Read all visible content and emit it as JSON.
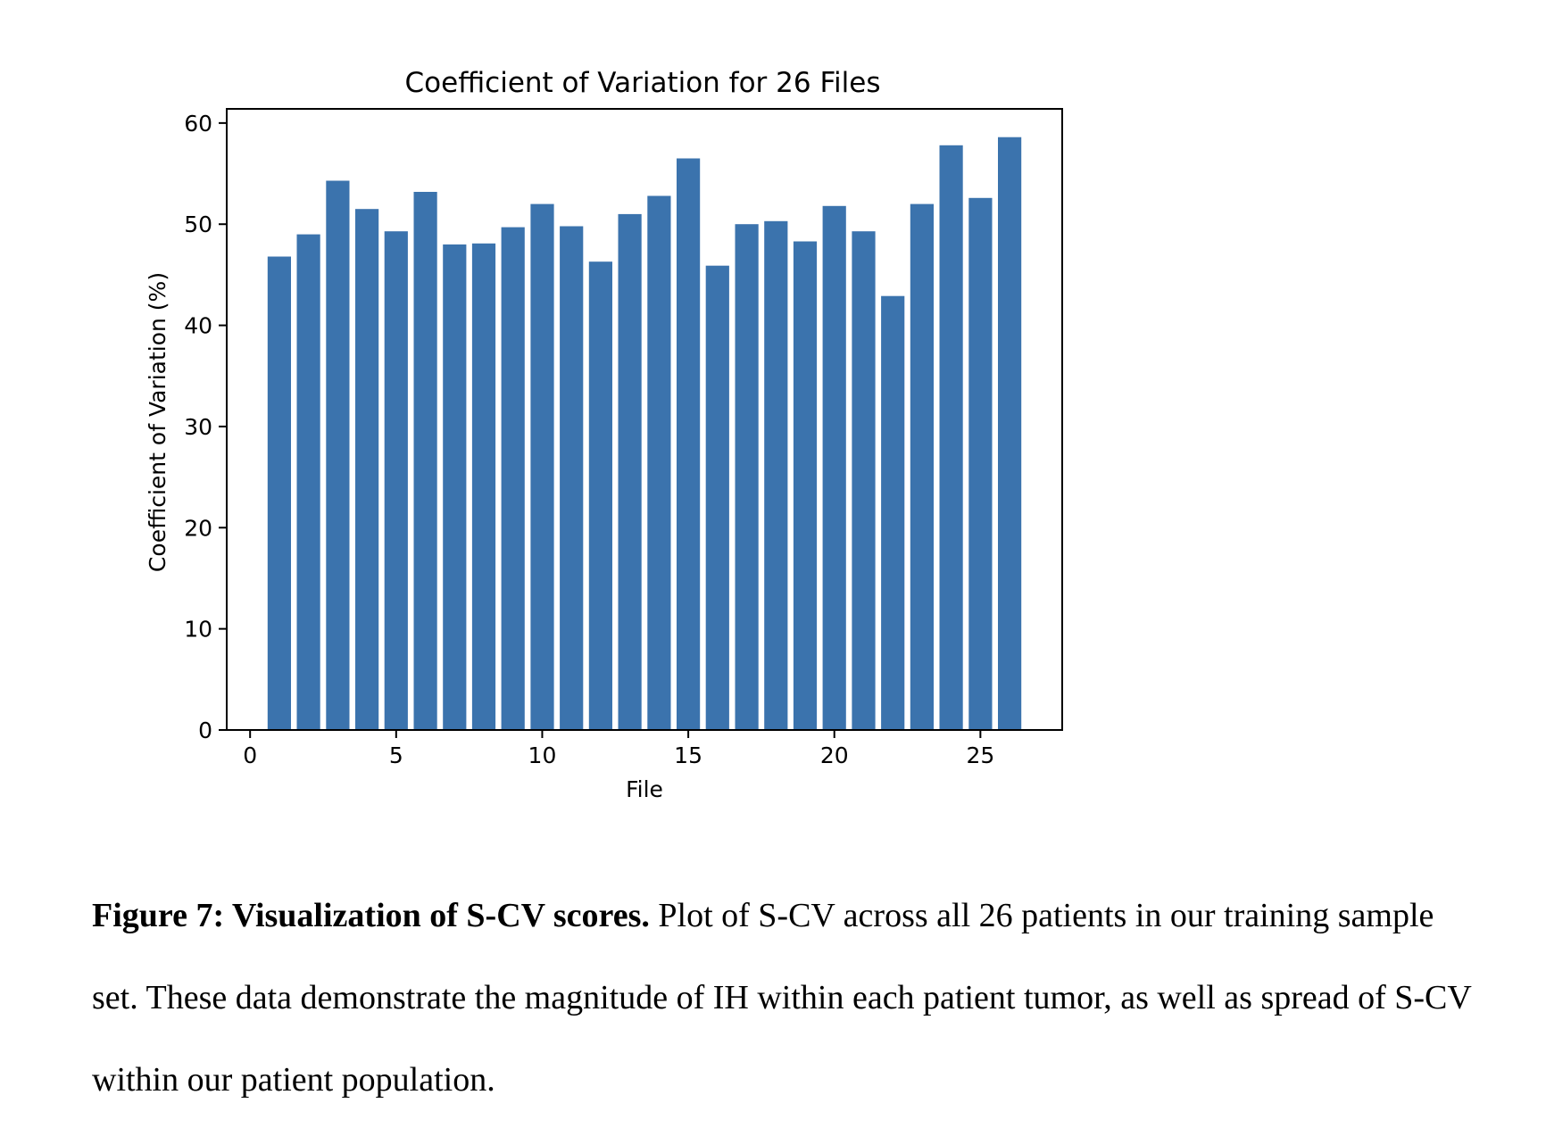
{
  "chart_data": {
    "type": "bar",
    "title": "Coefficient of Variation for 26 Files",
    "xlabel": "File",
    "ylabel": "Coefficient of Variation (%)",
    "categories": [
      1,
      2,
      3,
      4,
      5,
      6,
      7,
      8,
      9,
      10,
      11,
      12,
      13,
      14,
      15,
      16,
      17,
      18,
      19,
      20,
      21,
      22,
      23,
      24,
      25,
      26
    ],
    "values": [
      46.8,
      49.0,
      54.3,
      51.5,
      49.3,
      53.2,
      48.0,
      48.1,
      49.7,
      52.0,
      49.8,
      46.3,
      51.0,
      52.8,
      56.5,
      45.9,
      50.0,
      50.3,
      48.3,
      51.8,
      49.3,
      42.9,
      52.0,
      57.8,
      52.6,
      58.6
    ],
    "xlim": [
      -0.8,
      27.8
    ],
    "ylim": [
      0,
      61.4
    ],
    "xticks": [
      0,
      5,
      10,
      15,
      20,
      25
    ],
    "yticks": [
      0,
      10,
      20,
      30,
      40,
      50,
      60
    ],
    "bar_color": "#3b73ad",
    "grid": false,
    "legend": "none"
  },
  "caption": {
    "label": "Figure 7: Visualization of S-CV scores.",
    "text": " Plot of S-CV across all 26 patients in our training sample set. These data demonstrate the magnitude of IH within each patient tumor, as well as spread of S-CV within our patient population."
  }
}
